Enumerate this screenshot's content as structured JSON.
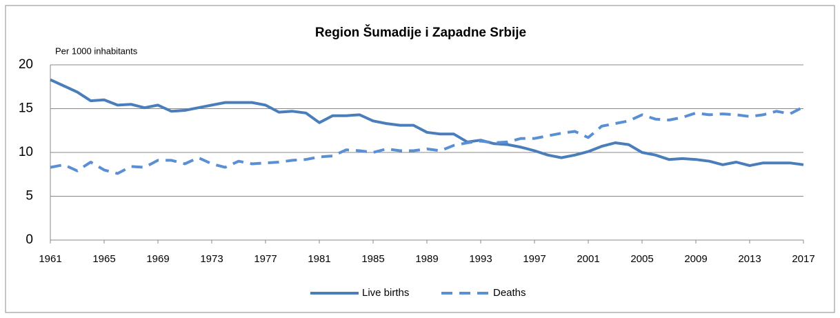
{
  "chart_data": {
    "type": "line",
    "title": "Region Šumadije i Zapadne Srbije",
    "y_label": "Per 1000 inhabitants",
    "x": [
      1961,
      1962,
      1963,
      1964,
      1965,
      1966,
      1967,
      1968,
      1969,
      1970,
      1971,
      1972,
      1973,
      1974,
      1975,
      1976,
      1977,
      1978,
      1979,
      1980,
      1981,
      1982,
      1983,
      1984,
      1985,
      1986,
      1987,
      1988,
      1989,
      1990,
      1991,
      1992,
      1993,
      1994,
      1995,
      1996,
      1997,
      1998,
      1999,
      2000,
      2001,
      2002,
      2003,
      2004,
      2005,
      2006,
      2007,
      2008,
      2009,
      2010,
      2011,
      2012,
      2013,
      2014,
      2015,
      2016,
      2017
    ],
    "series": [
      {
        "name": "Live births",
        "color": "#4a7ebb",
        "dash": false,
        "values": [
          18.3,
          17.6,
          16.9,
          15.9,
          16.0,
          15.4,
          15.5,
          15.1,
          15.4,
          14.7,
          14.8,
          15.1,
          15.4,
          15.7,
          15.7,
          15.7,
          15.4,
          14.6,
          14.7,
          14.5,
          13.4,
          14.2,
          14.2,
          14.3,
          13.6,
          13.3,
          13.1,
          13.1,
          12.3,
          12.1,
          12.1,
          11.2,
          11.4,
          11.0,
          10.9,
          10.6,
          10.2,
          9.7,
          9.4,
          9.7,
          10.1,
          10.7,
          11.1,
          10.9,
          10.0,
          9.7,
          9.2,
          9.3,
          9.2,
          9.0,
          8.6,
          8.9,
          8.5,
          8.8,
          8.8,
          8.8,
          8.6
        ]
      },
      {
        "name": "Deaths",
        "color": "#5a8fd4",
        "dash": true,
        "values": [
          8.3,
          8.6,
          7.9,
          8.9,
          8.0,
          7.6,
          8.4,
          8.3,
          9.1,
          9.1,
          8.7,
          9.4,
          8.7,
          8.3,
          9.0,
          8.7,
          8.8,
          8.9,
          9.1,
          9.2,
          9.5,
          9.6,
          10.3,
          10.2,
          10.0,
          10.4,
          10.2,
          10.2,
          10.4,
          10.2,
          10.8,
          11.1,
          11.3,
          11.1,
          11.2,
          11.6,
          11.6,
          11.9,
          12.2,
          12.4,
          11.7,
          13.0,
          13.3,
          13.6,
          14.3,
          13.8,
          13.7,
          14.0,
          14.5,
          14.3,
          14.4,
          14.3,
          14.1,
          14.3,
          14.7,
          14.4,
          15.2
        ]
      }
    ],
    "xlim": [
      1961,
      2017
    ],
    "xticks": [
      1961,
      1965,
      1969,
      1973,
      1977,
      1981,
      1985,
      1989,
      1993,
      1997,
      2001,
      2005,
      2009,
      2013,
      2017
    ],
    "ylim": [
      0,
      20
    ],
    "yticks": [
      0,
      5,
      10,
      15,
      20
    ],
    "grid": true,
    "legend": "bottom"
  }
}
